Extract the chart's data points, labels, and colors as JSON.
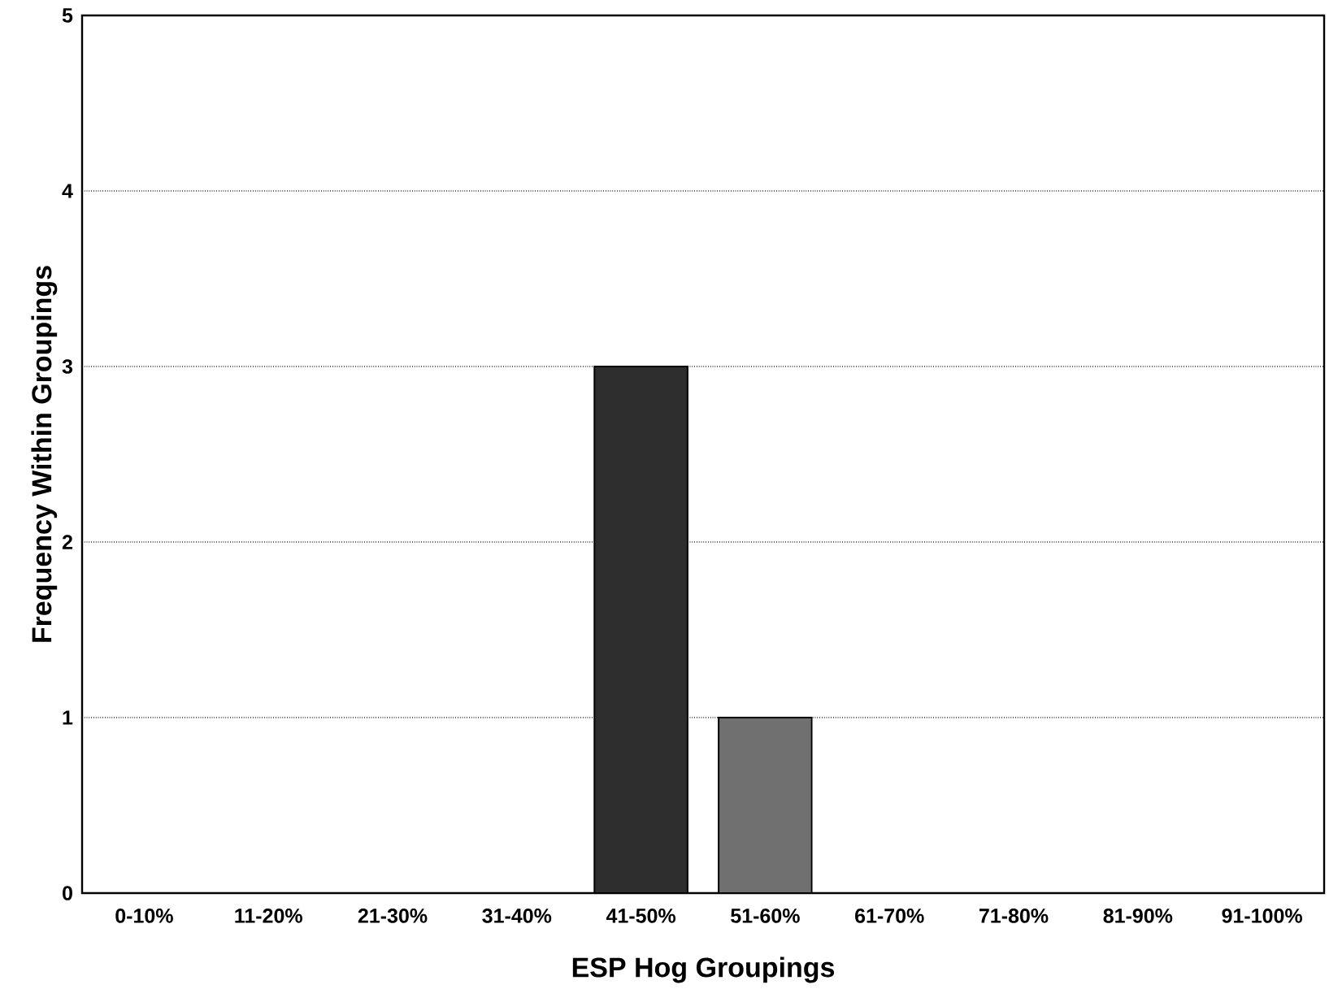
{
  "chart_data": {
    "type": "bar",
    "xlabel": "ESP Hog Groupings",
    "ylabel": "Frequency Within Groupings",
    "categories": [
      "0-10%",
      "11-20%",
      "21-30%",
      "31-40%",
      "41-50%",
      "51-60%",
      "61-70%",
      "71-80%",
      "81-90%",
      "91-100%"
    ],
    "values": [
      0,
      0,
      0,
      0,
      3,
      1,
      0,
      0,
      0,
      0
    ],
    "colors": [
      null,
      null,
      null,
      null,
      "#2e2e2e",
      "#707070",
      null,
      null,
      null,
      null
    ],
    "ylim": [
      0,
      5
    ],
    "yticks": [
      0,
      1,
      2,
      3,
      4,
      5
    ],
    "grid": "y"
  }
}
